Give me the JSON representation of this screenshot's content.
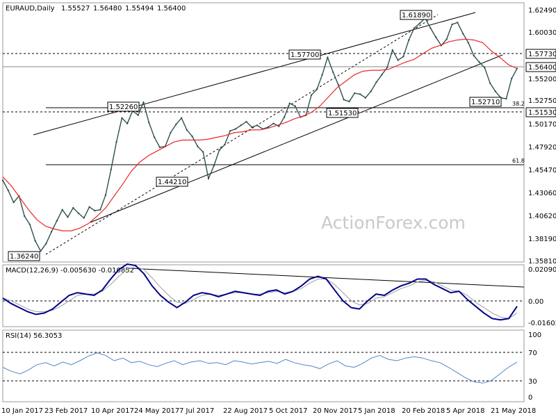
{
  "chart_data": [
    {
      "type": "line",
      "panel": "price",
      "title": "EURAUD,Daily",
      "ohlc": [
        "1.55527",
        "1.56480",
        "1.55494",
        "1.56400"
      ],
      "watermark": "ActionForex.com",
      "ylim": [
        1.353,
        1.6356
      ],
      "y_ticks": [
        "1.62490",
        "1.60030",
        "1.57730",
        "1.55200",
        "1.52750",
        "1.50170",
        "1.47920",
        "1.45470",
        "1.43060",
        "1.40620",
        "1.38190",
        "1.35810"
      ],
      "x_ticks": [
        "10 Jan 2017",
        "23 Feb 2017",
        "10 Apr 2017",
        "24 May 2017",
        "7 Jul 2017",
        "22 Aug 2017",
        "5 Oct 2017",
        "20 Nov 2017",
        "5 Jan 2018",
        "20 Feb 2018",
        "5 Apr 2018",
        "21 May 2018"
      ],
      "current_price_label": "1.56400",
      "level_labels": [
        "1.57730",
        "1.51530"
      ],
      "fib_labels": [
        "38.2",
        "61.8"
      ],
      "annotations": [
        "1.36240",
        "1.44210",
        "1.52260",
        "1.57700",
        "1.51530",
        "1.61890",
        "1.52710"
      ],
      "series": [
        {
          "name": "EURAUD",
          "color": "#2f4f4f",
          "values": [
            1.442,
            1.431,
            1.418,
            1.425,
            1.403,
            1.394,
            1.376,
            1.365,
            1.373,
            1.386,
            1.398,
            1.41,
            1.402,
            1.412,
            1.406,
            1.401,
            1.413,
            1.409,
            1.41,
            1.426,
            1.454,
            1.484,
            1.51,
            1.504,
            1.518,
            1.513,
            1.527,
            1.505,
            1.489,
            1.478,
            1.479,
            1.494,
            1.503,
            1.51,
            1.497,
            1.49,
            1.479,
            1.473,
            1.444,
            1.458,
            1.475,
            1.481,
            1.496,
            1.498,
            1.502,
            1.506,
            1.5,
            1.502,
            1.498,
            1.5,
            1.504,
            1.501,
            1.511,
            1.526,
            1.523,
            1.511,
            1.513,
            1.535,
            1.541,
            1.557,
            1.576,
            1.56,
            1.546,
            1.53,
            1.528,
            1.537,
            1.536,
            1.532,
            1.539,
            1.549,
            1.557,
            1.565,
            1.584,
            1.573,
            1.577,
            1.595,
            1.608,
            1.613,
            1.619,
            1.608,
            1.598,
            1.589,
            1.596,
            1.612,
            1.614,
            1.602,
            1.592,
            1.578,
            1.571,
            1.565,
            1.548,
            1.539,
            1.532,
            1.531,
            1.553,
            1.564
          ]
        },
        {
          "name": "SMA",
          "color": "#e8262a",
          "values": [
            1.446,
            1.436,
            1.423,
            1.41,
            1.399,
            1.392,
            1.389,
            1.387,
            1.387,
            1.39,
            1.395,
            1.403,
            1.412,
            1.425,
            1.438,
            1.452,
            1.462,
            1.469,
            1.474,
            1.479,
            1.484,
            1.486,
            1.486,
            1.486,
            1.487,
            1.489,
            1.491,
            1.494,
            1.495,
            1.497,
            1.497,
            1.499,
            1.502,
            1.505,
            1.509,
            1.512,
            1.516,
            1.523,
            1.533,
            1.543,
            1.55,
            1.557,
            1.561,
            1.562,
            1.562,
            1.563,
            1.567,
            1.571,
            1.574,
            1.58,
            1.586,
            1.589,
            1.593,
            1.595,
            1.596,
            1.595,
            1.592,
            1.583,
            1.576,
            1.568,
            1.564
          ]
        }
      ]
    },
    {
      "type": "line",
      "panel": "macd",
      "title": "MACD(12,26,9) -0.005630 -0.010852",
      "y_ticks": [
        "0.020904",
        "0.00",
        "-0.016023"
      ],
      "series": [
        {
          "name": "MACD",
          "color": "#00008b",
          "values": [
            0.0,
            -0.004,
            -0.007,
            -0.01,
            -0.012,
            -0.011,
            -0.008,
            -0.003,
            0.002,
            0.004,
            0.003,
            0.002,
            0.006,
            0.014,
            0.021,
            0.025,
            0.024,
            0.018,
            0.009,
            0.002,
            -0.003,
            -0.007,
            -0.003,
            0.002,
            0.004,
            0.003,
            0.001,
            0.003,
            0.005,
            0.004,
            0.003,
            0.002,
            0.005,
            0.006,
            0.003,
            0.005,
            0.009,
            0.014,
            0.016,
            0.014,
            0.006,
            -0.002,
            -0.007,
            -0.008,
            -0.002,
            0.003,
            0.002,
            0.006,
            0.009,
            0.011,
            0.014,
            0.014,
            0.01,
            0.007,
            0.004,
            0.005,
            -0.001,
            -0.006,
            -0.011,
            -0.015,
            -0.016,
            -0.015,
            -0.006
          ]
        },
        {
          "name": "Signal",
          "color": "#9e9e9e",
          "values": [
            0.0,
            -0.002,
            -0.005,
            -0.008,
            -0.01,
            -0.01,
            -0.009,
            -0.006,
            -0.002,
            0.002,
            0.003,
            0.003,
            0.005,
            0.01,
            0.016,
            0.021,
            0.023,
            0.021,
            0.015,
            0.008,
            0.002,
            -0.003,
            -0.004,
            -0.001,
            0.002,
            0.003,
            0.002,
            0.003,
            0.004,
            0.004,
            0.003,
            0.003,
            0.004,
            0.005,
            0.004,
            0.005,
            0.007,
            0.011,
            0.014,
            0.014,
            0.01,
            0.004,
            -0.002,
            -0.005,
            -0.004,
            0.0,
            0.001,
            0.004,
            0.007,
            0.009,
            0.012,
            0.013,
            0.012,
            0.009,
            0.006,
            0.005,
            0.002,
            -0.003,
            -0.007,
            -0.011,
            -0.014,
            -0.015,
            -0.011
          ]
        }
      ]
    },
    {
      "type": "line",
      "panel": "rsi",
      "title": "RSI(14) 56.3053",
      "ylim": [
        0,
        100
      ],
      "y_ticks": [
        "100",
        "70",
        "30",
        "0"
      ],
      "series": [
        {
          "name": "RSI",
          "color": "#4f88c7",
          "values": [
            48,
            42,
            38,
            44,
            52,
            55,
            50,
            56,
            52,
            58,
            65,
            70,
            66,
            58,
            62,
            55,
            57,
            52,
            49,
            54,
            58,
            52,
            56,
            58,
            54,
            55,
            52,
            58,
            56,
            53,
            55,
            57,
            54,
            60,
            55,
            52,
            50,
            46,
            53,
            58,
            50,
            48,
            54,
            62,
            66,
            60,
            58,
            62,
            64,
            62,
            58,
            55,
            48,
            40,
            32,
            26,
            24,
            28,
            38,
            48,
            56
          ]
        }
      ]
    }
  ]
}
